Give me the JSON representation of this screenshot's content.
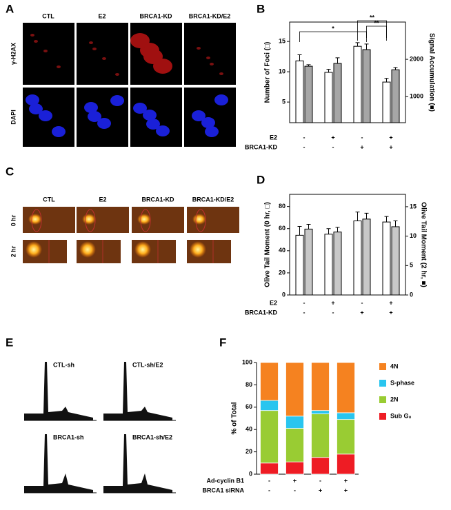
{
  "panels": {
    "a": "A",
    "b": "B",
    "c": "C",
    "d": "D",
    "e": "E",
    "f": "F"
  },
  "microscopy": {
    "columns": [
      "CTL",
      "E2",
      "BRCA1-KD",
      "BRCA1-KD/E2"
    ],
    "rows": [
      "γ-H2AX",
      "DAPI"
    ]
  },
  "comet": {
    "columns": [
      "CTL",
      "E2",
      "BRCA1-KD",
      "BRCA1-KD/E2"
    ],
    "rows": [
      "0 hr",
      "2 hr"
    ]
  },
  "cell_cycle": {
    "labels": [
      "CTL-sh",
      "CTL-sh/E2",
      "BRCA1-sh",
      "BRCA1-sh/E2"
    ]
  },
  "chart_data": [
    {
      "type": "bar",
      "y_label": "Number of Foci (□)",
      "y2_label": "Signal Accumulation (■)",
      "ylim": [
        1.6,
        18.2
      ],
      "yticks": [
        5,
        10,
        15
      ],
      "y2lim": [
        300,
        3000
      ],
      "y2ticks": [
        1000,
        2000
      ],
      "series": [
        {
          "color": "#ffffff",
          "values": [
            11.8,
            9.9,
            14.2,
            8.3
          ],
          "errors": [
            1.0,
            0.5,
            0.6,
            0.6
          ]
        },
        {
          "color": "#a6a6a6",
          "axis": "y2",
          "values": [
            1815,
            1890,
            2260,
            1720
          ],
          "errors": [
            40,
            150,
            150,
            60
          ]
        }
      ],
      "conditions": [
        {
          "name": "E2",
          "signs": [
            "-",
            "+",
            "-",
            "+"
          ]
        },
        {
          "name": "BRCA1-KD",
          "signs": [
            "-",
            "-",
            "+",
            "+"
          ]
        }
      ],
      "annotations": [
        "*",
        "**",
        "**"
      ]
    },
    {
      "type": "bar",
      "y_label": "Olive Tail Moment (0 hr, □)",
      "y2_label": "Olive Tail Moment (2 hr, ■)",
      "ylim": [
        0,
        91
      ],
      "yticks": [
        0,
        20,
        40,
        60,
        80
      ],
      "y2lim": [
        0,
        17.1
      ],
      "y2ticks": [
        0,
        5,
        10,
        15
      ],
      "series": [
        {
          "color": "#ffffff",
          "values": [
            54,
            55,
            67,
            66
          ],
          "errors": [
            8,
            5,
            8,
            5
          ]
        },
        {
          "color": "#c8c8c8",
          "axis": "y2",
          "values": [
            11.2,
            10.7,
            12.9,
            11.6
          ],
          "errors": [
            0.8,
            0.8,
            1.0,
            1.0
          ]
        }
      ],
      "conditions": [
        {
          "name": "E2",
          "signs": [
            "-",
            "+",
            "-",
            "+"
          ]
        },
        {
          "name": "BRCA1-KD",
          "signs": [
            "-",
            "-",
            "+",
            "+"
          ]
        }
      ]
    },
    {
      "type": "bar",
      "stacked": true,
      "y_label": "% of Total",
      "ylim": [
        0,
        100
      ],
      "yticks": [
        0,
        20,
        40,
        60,
        80,
        100
      ],
      "series": [
        {
          "name": "Sub G₀",
          "color": "#ee1c24",
          "values": [
            10,
            11,
            15,
            18
          ]
        },
        {
          "name": "2N",
          "color": "#99cc33",
          "values": [
            47,
            30,
            39,
            31
          ]
        },
        {
          "name": "S-phase",
          "color": "#29c5ef",
          "values": [
            9,
            11,
            3,
            6
          ]
        },
        {
          "name": "4N",
          "color": "#f58220",
          "values": [
            34,
            48,
            43,
            45
          ]
        }
      ],
      "conditions": [
        {
          "name": "Ad-cyclin B1",
          "signs": [
            "-",
            "+",
            "-",
            "+"
          ]
        },
        {
          "name": "BRCA1 siRNA",
          "signs": [
            "-",
            "-",
            "+",
            "+"
          ]
        }
      ]
    }
  ]
}
